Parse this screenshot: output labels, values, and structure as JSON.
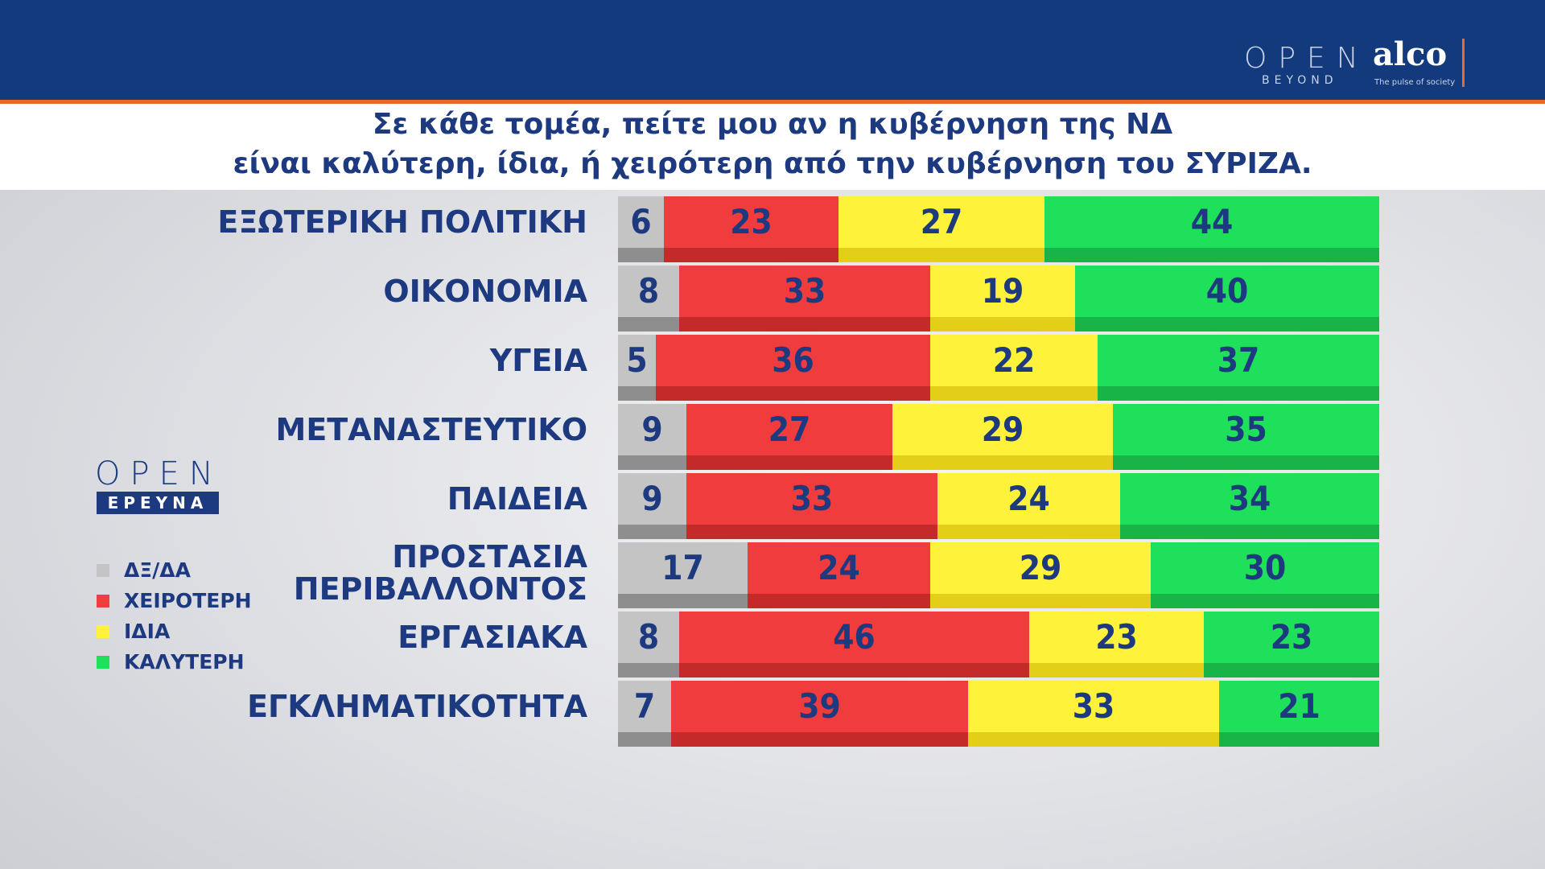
{
  "header": {
    "logo_open": "OPEN",
    "logo_beyond": "BEYOND",
    "logo_alco": "alco",
    "logo_alco_tagline": "The pulse of society"
  },
  "title": {
    "line1": "Σε κάθε τομέα, πείτε μου αν η κυβέρνηση της ΝΔ",
    "line2": "είναι καλύτερη, ίδια, ή χειρότερη από την κυβέρνηση του ΣΥΡΙΖΑ."
  },
  "brand": {
    "open": "OPEN",
    "ereuna": "ΕΡΕΥΝΑ"
  },
  "colors": {
    "header_bg": "#143a7e",
    "accent": "#e8692a",
    "text": "#1d3a80",
    "dk": "#c4c4c4",
    "worse": "#f03c3c",
    "same": "#fff23a",
    "better": "#1fe05a"
  },
  "chart_data": {
    "type": "bar",
    "orientation": "horizontal",
    "stacked": true,
    "percent": true,
    "categories": [
      [
        "ΕΞΩΤΕΡΙΚΗ ΠΟΛΙΤΙΚΗ"
      ],
      [
        "ΟΙΚΟΝΟΜΙΑ"
      ],
      [
        "ΥΓΕΙΑ"
      ],
      [
        "ΜΕΤΑΝΑΣΤΕΥΤΙΚΟ"
      ],
      [
        "ΠΑΙΔΕΙΑ"
      ],
      [
        "ΠΡΟΣΤΑΣΙΑ",
        "ΠΕΡΙΒΑΛΛΟΝΤΟΣ"
      ],
      [
        "ΕΡΓΑΣΙΑΚΑ"
      ],
      [
        "ΕΓΚΛΗΜΑΤΙΚΟΤΗΤΑ"
      ]
    ],
    "series": [
      {
        "name": "ΔΞ/ΔΑ",
        "key": "dk",
        "values": [
          6,
          8,
          5,
          9,
          9,
          17,
          8,
          7
        ]
      },
      {
        "name": "ΧΕΙΡΟΤΕΡΗ",
        "key": "wo",
        "values": [
          23,
          33,
          36,
          27,
          33,
          24,
          46,
          39
        ]
      },
      {
        "name": "ΙΔΙΑ",
        "key": "sa",
        "values": [
          27,
          19,
          22,
          29,
          24,
          29,
          23,
          33
        ]
      },
      {
        "name": "ΚΑΛΥΤΕΡΗ",
        "key": "be",
        "values": [
          44,
          40,
          37,
          35,
          34,
          30,
          23,
          21
        ]
      }
    ],
    "legend_position": "left"
  }
}
